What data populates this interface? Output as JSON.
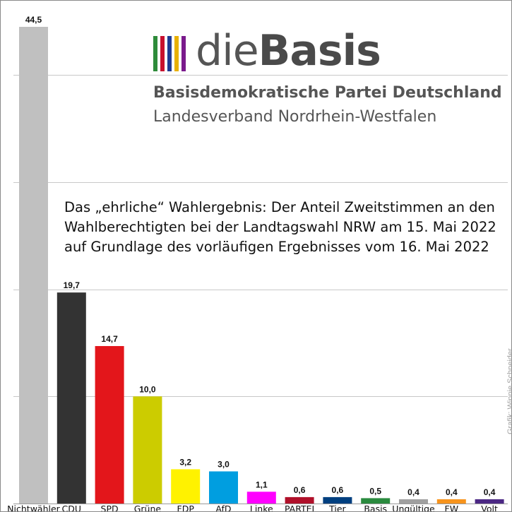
{
  "logo": {
    "text_light": "die",
    "text_bold": "Basis",
    "stripe_colors": [
      "#2e8b3a",
      "#c8102e",
      "#1f3a93",
      "#e8b000",
      "#7a1a8c"
    ]
  },
  "party_name": "Basisdemokratische Partei Deutschland",
  "party_region": "Landesverband Nordrhein-Westfalen",
  "credit": "Grafik: Winnie Schneider",
  "chart_data": {
    "type": "bar",
    "title_lines": [
      "Das „ehrliche“ Wahlergebnis: Der Anteil Zweitstimmen an den",
      "Wahlberechtigten bei der Landtagswahl NRW am 15. Mai 2022",
      "auf Grundlage des vorläufigen Ergebnisses vom 16. Mai 2022"
    ],
    "categories": [
      "Nichtwähler",
      "CDU",
      "SPD",
      "Grüne",
      "FDP",
      "AfD",
      "Linke",
      "PARTEI",
      "Tier",
      "Basis",
      "Ungültige",
      "FW",
      "Volt"
    ],
    "values": [
      44.5,
      19.7,
      14.7,
      10.0,
      3.2,
      3.0,
      1.1,
      0.6,
      0.6,
      0.5,
      0.4,
      0.4,
      0.4
    ],
    "value_labels": [
      "44,5",
      "19,7",
      "14,7",
      "10,0",
      "3,2",
      "3,0",
      "1,1",
      "0,6",
      "0,6",
      "0,5",
      "0,4",
      "0,4",
      "0,4"
    ],
    "colors": [
      "#c0c0c0",
      "#333333",
      "#e3161b",
      "#cccc00",
      "#fff200",
      "#009ee0",
      "#ff00ff",
      "#b0102a",
      "#003f7f",
      "#2a8a3e",
      "#a0a0a0",
      "#f7941d",
      "#4b2884"
    ],
    "ylim": [
      0,
      45
    ],
    "gridlines": [
      10,
      20,
      30,
      40
    ],
    "grid": true,
    "legend": "none"
  }
}
